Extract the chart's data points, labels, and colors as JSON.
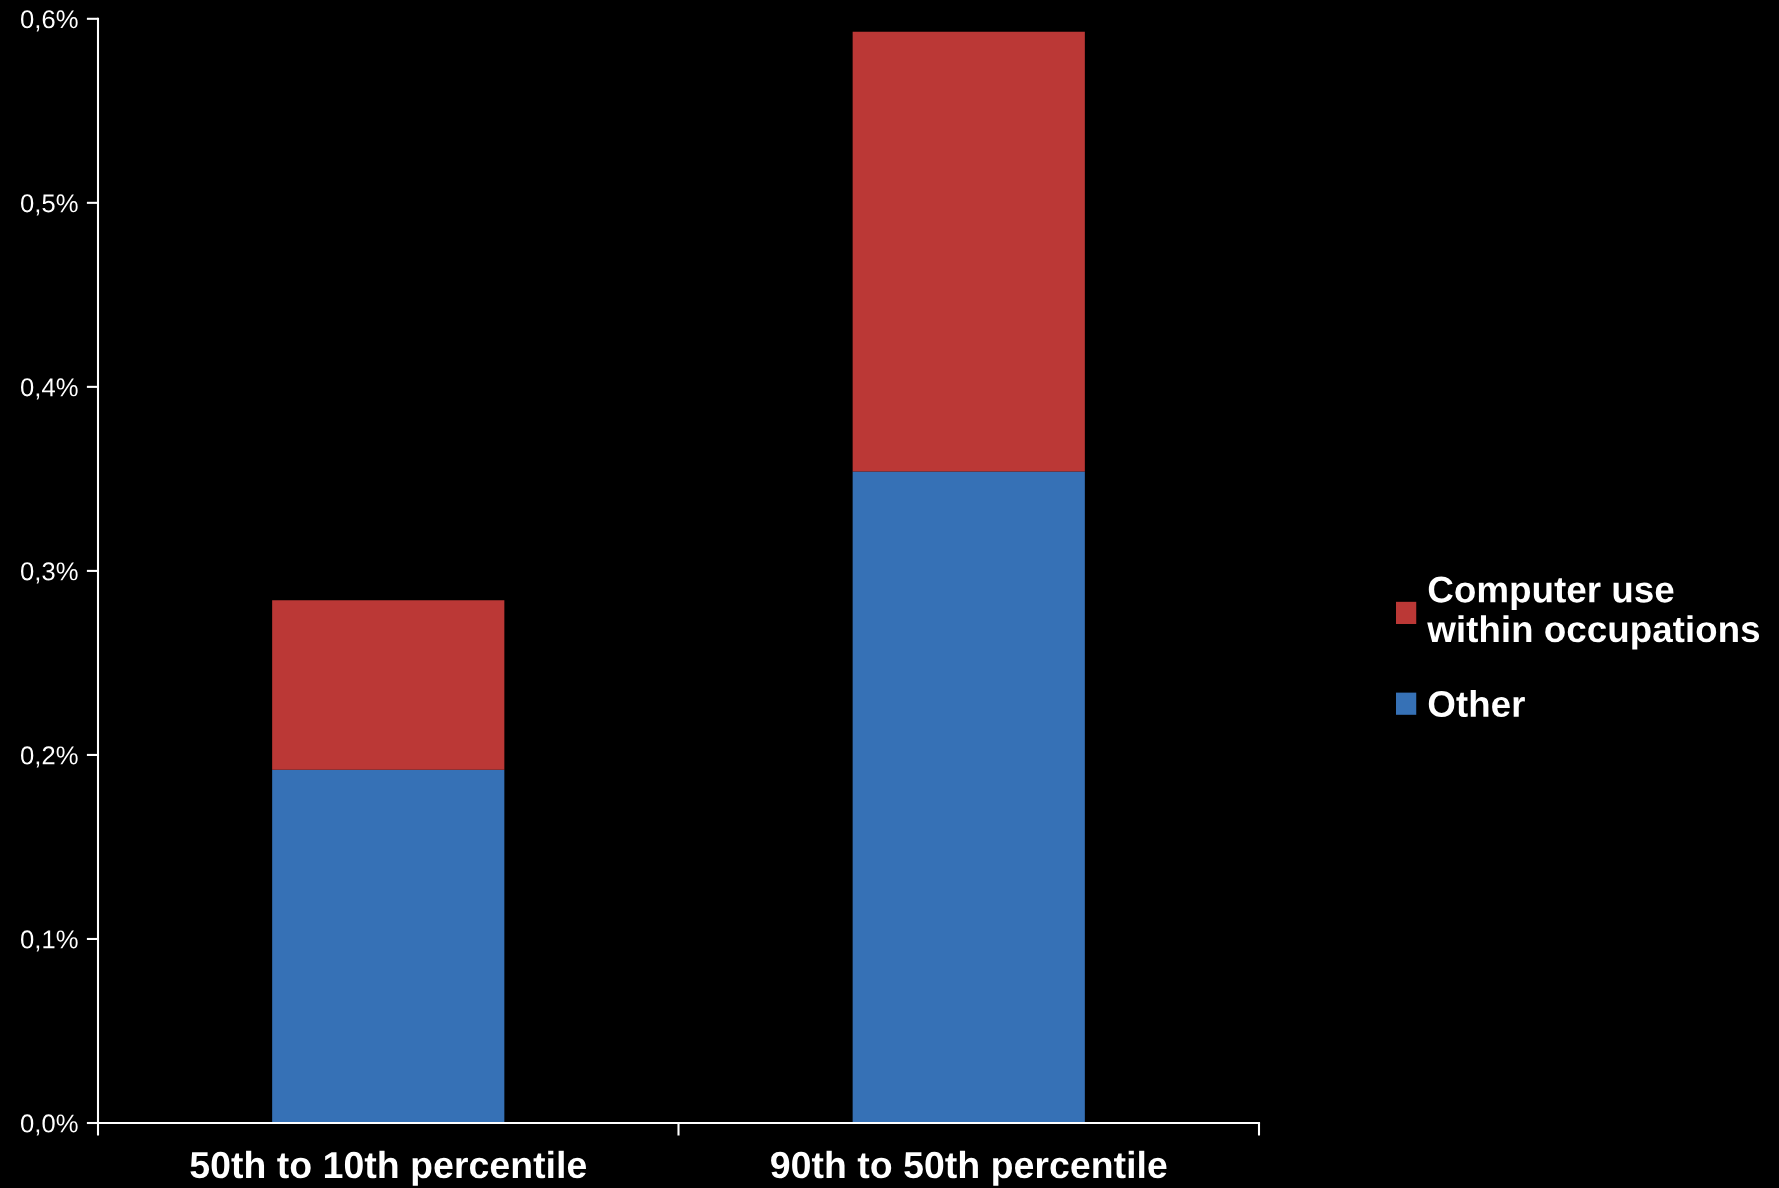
{
  "chart_data": {
    "type": "bar",
    "stacked": true,
    "categories": [
      "50th to 10th percentile",
      "90th to 50th percentile"
    ],
    "series": [
      {
        "name": "Other",
        "color": "#3671b6",
        "values": [
          0.192,
          0.354
        ]
      },
      {
        "name": "Computer use\nwithin occupations",
        "color": "#bb3836",
        "values": [
          0.092,
          0.239
        ]
      }
    ],
    "ylim": [
      0,
      0.6
    ],
    "yticks": [
      {
        "value": 0,
        "label": "0,0%"
      },
      {
        "value": 0.1,
        "label": "0,1%"
      },
      {
        "value": 0.2,
        "label": "0,2%"
      },
      {
        "value": 0.3,
        "label": "0,3%"
      },
      {
        "value": 0.4,
        "label": "0,4%"
      },
      {
        "value": 0.5,
        "label": "0,5%"
      },
      {
        "value": 0.6,
        "label": "0,6%"
      }
    ],
    "grid": false,
    "legend": "right"
  }
}
